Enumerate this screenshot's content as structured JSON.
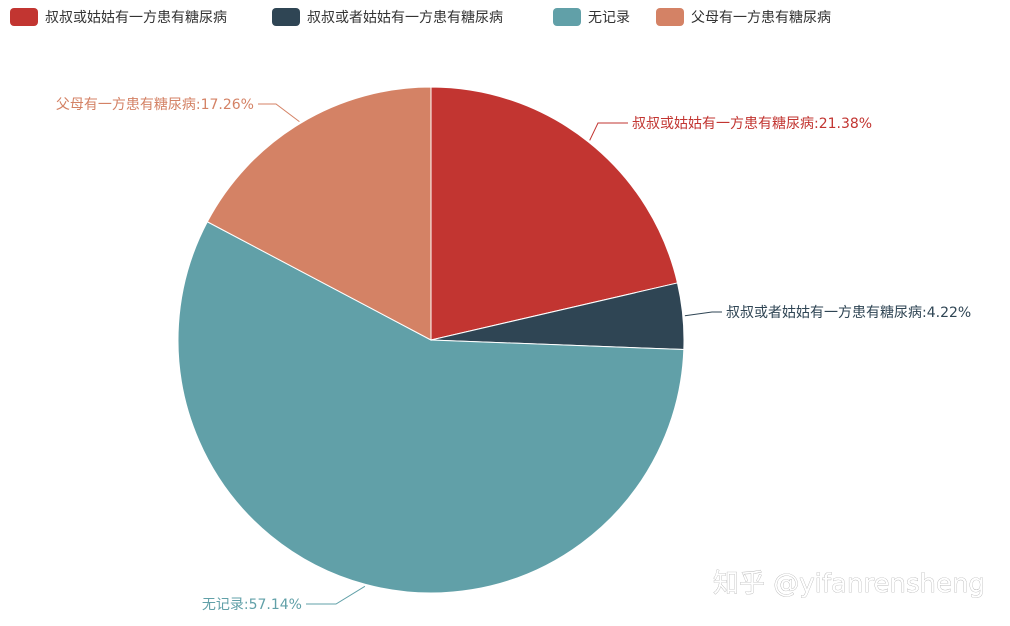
{
  "chart_data": {
    "type": "pie",
    "title": "",
    "legend_position": "top-left",
    "series": [
      {
        "name": "叔叔或姑姑有一方患有糖尿病",
        "value": 21.38,
        "label": "叔叔或姑姑有一方患有糖尿病:21.38%",
        "color": "#c23531"
      },
      {
        "name": "叔叔或者姑姑有一方患有糖尿病",
        "value": 4.22,
        "label": "叔叔或者姑姑有一方患有糖尿病:4.22%",
        "color": "#2f4554"
      },
      {
        "name": "无记录",
        "value": 57.14,
        "label": "无记录:57.14%",
        "color": "#61a0a8"
      },
      {
        "name": "父母有一方患有糖尿病",
        "value": 17.26,
        "label": "父母有一方患有糖尿病:17.26%",
        "color": "#d48265"
      }
    ]
  },
  "watermark": "知乎 @yifanrensheng"
}
